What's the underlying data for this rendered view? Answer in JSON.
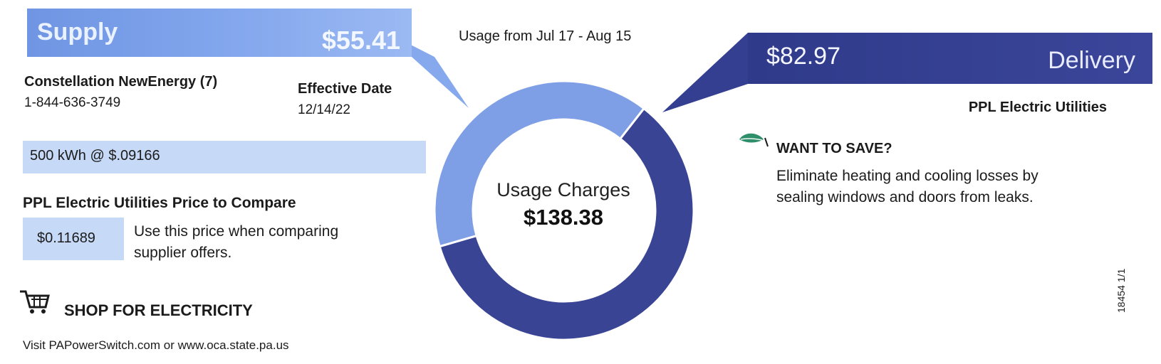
{
  "supply": {
    "label": "Supply",
    "amount": "$55.41",
    "supplier_name": "Constellation NewEnergy (7)",
    "supplier_phone": "1-844-636-3749",
    "effective_date_label": "Effective Date",
    "effective_date": "12/14/22",
    "rate_text": "500 kWh @ $.09166",
    "ptc_heading": "PPL Electric Utilities Price to Compare",
    "ptc_value": "$0.11689",
    "ptc_note_line1": "Use this price when comparing",
    "ptc_note_line2": "supplier offers."
  },
  "shop": {
    "heading": "SHOP FOR ELECTRICITY",
    "text": "Visit PAPowerSwitch.com or www.oca.state.pa.us"
  },
  "usage_period": "Usage from Jul 17 - Aug 15",
  "donut": {
    "center_label": "Usage Charges",
    "center_total": "$138.38",
    "supply_value": 55.41,
    "delivery_value": 82.97,
    "supply_color": "#7e9fe6",
    "delivery_color": "#3a4495"
  },
  "delivery": {
    "label": "Delivery",
    "amount": "$82.97",
    "utility_name": "PPL Electric Utilities"
  },
  "save_tip": {
    "heading": "WANT TO SAVE?",
    "line1": "Eliminate heating and cooling losses by",
    "line2": "sealing windows and doors from leaks."
  },
  "side_code": "18454 1/1",
  "colors": {
    "supply_banner": "#7e9fe6",
    "delivery_banner": "#343f92",
    "light_box": "#c6d9f6",
    "leaf": "#2f8f6b"
  },
  "icons": [
    "shopping-cart-icon",
    "leaf-icon"
  ]
}
